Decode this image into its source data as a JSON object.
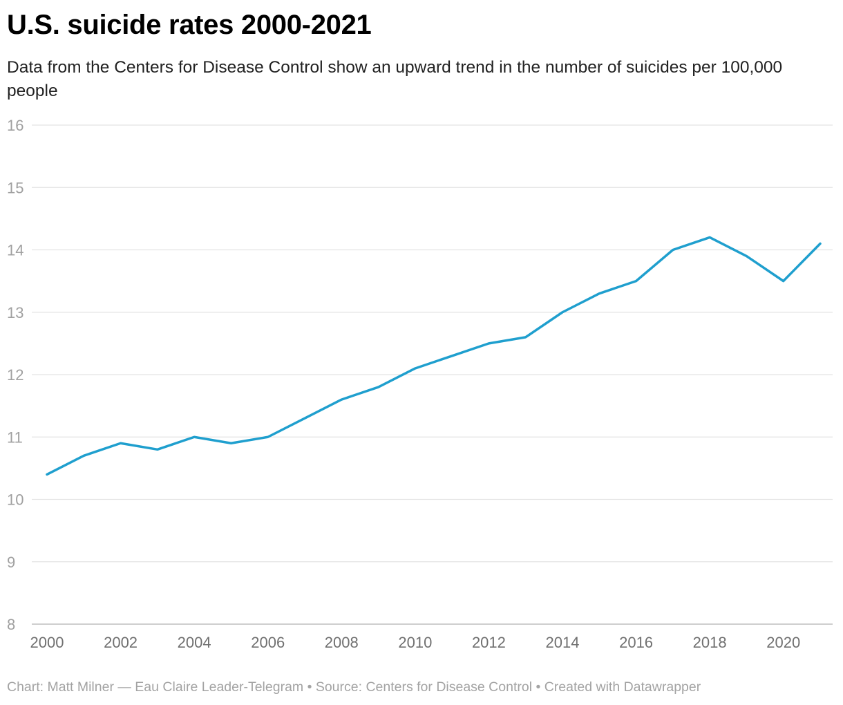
{
  "header": {
    "title": "U.S. suicide rates 2000-2021",
    "subtitle": "Data from the Centers for Disease Control show an upward trend in the number of suicides per 100,000 people"
  },
  "footer": {
    "credit": "Chart: Matt Milner — Eau Claire Leader-Telegram • Source: Centers for Disease Control • Created with Datawrapper"
  },
  "colors": {
    "line": "#1f9fce",
    "grid": "#e3e3e3",
    "baseline": "#bdbdbd"
  },
  "chart_data": {
    "type": "line",
    "title": "U.S. suicide rates 2000-2021",
    "xlabel": "",
    "ylabel": "",
    "x": [
      2000,
      2001,
      2002,
      2003,
      2004,
      2005,
      2006,
      2007,
      2008,
      2009,
      2010,
      2011,
      2012,
      2013,
      2014,
      2015,
      2016,
      2017,
      2018,
      2019,
      2020,
      2021
    ],
    "series": [
      {
        "name": "Suicides per 100,000 people",
        "values": [
          10.4,
          10.7,
          10.9,
          10.8,
          11.0,
          10.9,
          11.0,
          11.3,
          11.6,
          11.8,
          12.1,
          12.3,
          12.5,
          12.6,
          13.0,
          13.3,
          13.5,
          14.0,
          14.2,
          13.9,
          13.5,
          14.1
        ]
      }
    ],
    "xlim": [
      2000,
      2021
    ],
    "ylim": [
      8,
      16
    ],
    "y_ticks": [
      "8",
      "9",
      "10",
      "11",
      "12",
      "13",
      "14",
      "15",
      "16"
    ],
    "x_ticks": [
      "2000",
      "2002",
      "2004",
      "2006",
      "2008",
      "2010",
      "2012",
      "2014",
      "2016",
      "2018",
      "2020"
    ],
    "grid": true,
    "legend": "none"
  }
}
